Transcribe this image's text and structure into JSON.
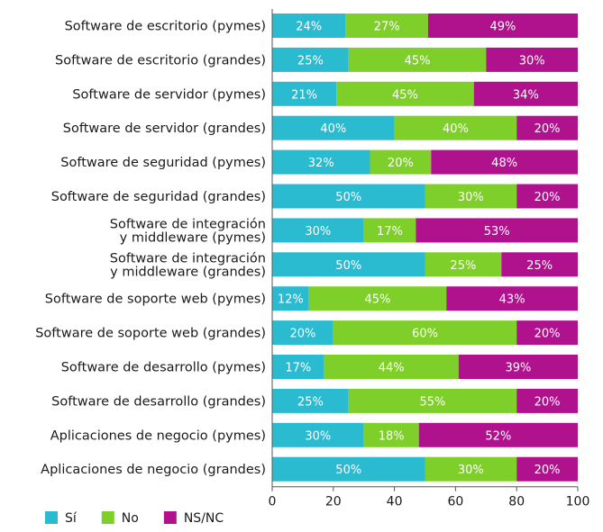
{
  "chart_data": {
    "type": "bar",
    "orientation": "horizontal",
    "stacked": true,
    "categories": [
      "Software de escritorio (pymes)",
      "Software de escritorio (grandes)",
      "Software de servidor (pymes)",
      "Software de servidor (grandes)",
      "Software de seguridad (pymes)",
      "Software de seguridad (grandes)",
      "Software de integración y middleware (pymes)",
      "Software de integración y middleware (grandes)",
      "Software de soporte web (pymes)",
      "Software de soporte web (grandes)",
      "Software de desarrollo (pymes)",
      "Software de desarrollo (grandes)",
      "Aplicaciones de negocio (pymes)",
      "Aplicaciones de negocio (grandes)"
    ],
    "category_lines": [
      [
        "Software de escritorio (pymes)"
      ],
      [
        "Software de escritorio (grandes)"
      ],
      [
        "Software de servidor (pymes)"
      ],
      [
        "Software de servidor (grandes)"
      ],
      [
        "Software de seguridad (pymes)"
      ],
      [
        "Software de seguridad (grandes)"
      ],
      [
        "Software de integración",
        "y middleware (pymes)"
      ],
      [
        "Software de integración",
        "y middleware (grandes)"
      ],
      [
        "Software de soporte web (pymes)"
      ],
      [
        "Software de soporte web (grandes)"
      ],
      [
        "Software de desarrollo (pymes)"
      ],
      [
        "Software de desarrollo (grandes)"
      ],
      [
        "Aplicaciones de negocio (pymes)"
      ],
      [
        "Aplicaciones de negocio (grandes)"
      ]
    ],
    "series": [
      {
        "name": "Sí",
        "color": "#2bbbd0",
        "values": [
          24,
          25,
          21,
          40,
          32,
          50,
          30,
          50,
          12,
          20,
          17,
          25,
          30,
          50
        ]
      },
      {
        "name": "No",
        "color": "#7fcf2a",
        "values": [
          27,
          45,
          45,
          40,
          20,
          30,
          17,
          25,
          45,
          60,
          44,
          55,
          18,
          30
        ]
      },
      {
        "name": "NS/NC",
        "color": "#b0128e",
        "values": [
          49,
          30,
          34,
          20,
          48,
          20,
          53,
          25,
          43,
          20,
          39,
          20,
          52,
          20
        ]
      }
    ],
    "value_suffix": "%",
    "xlim": [
      0,
      100
    ],
    "xticks": [
      0,
      20,
      40,
      60,
      80,
      100
    ],
    "legend_position": "bottom-left",
    "grid": false
  }
}
